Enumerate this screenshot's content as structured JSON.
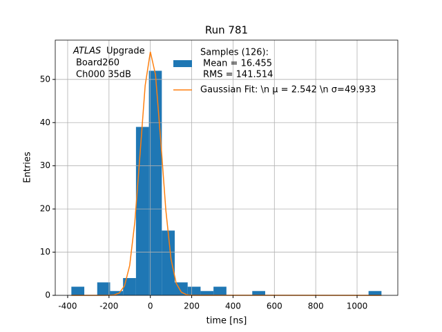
{
  "chart_data": {
    "type": "histogram",
    "title": "Run 781",
    "xlabel": "time [ns]",
    "ylabel": "Entries",
    "annotation": [
      "ATLAS",
      "Upgrade",
      "Board260",
      "Ch000 35dB"
    ],
    "bins": [
      -382,
      -319.5,
      -257,
      -194.5,
      -132,
      -69.5,
      -7,
      55.5,
      118,
      180.5,
      243,
      305.5,
      368,
      430.5,
      493,
      555.5,
      618,
      680.5,
      743,
      805.5,
      868,
      930.5,
      993,
      1055.5,
      1118
    ],
    "series": [
      {
        "type": "histogram",
        "name": [
          "Samples (126):",
          "Mean = 16.455",
          "RMS = 141.514"
        ],
        "color": "#1f77b4",
        "values": [
          2,
          0,
          3,
          1,
          4,
          39,
          52,
          15,
          3,
          2,
          1,
          2,
          0,
          0,
          1,
          0,
          0,
          0,
          0,
          0,
          0,
          0,
          0,
          1
        ]
      },
      {
        "type": "line",
        "name": "Gaussian Fit: \\n μ = 2.542 \\n σ=49.933",
        "color": "#ff7f0e",
        "x": [
          -382,
          -200,
          -175,
          -150,
          -125,
          -100,
          -75,
          -50,
          -25,
          0,
          25,
          50,
          75,
          100,
          125,
          150,
          175,
          200,
          1118
        ],
        "values": [
          0,
          0.02,
          0.1,
          0.54,
          2.19,
          6.9,
          17.0,
          32.6,
          48.6,
          56.4,
          51.1,
          36.0,
          19.7,
          8.4,
          2.8,
          0.73,
          0.15,
          0.02,
          0
        ]
      }
    ],
    "xlim": [
      -460,
      1197
    ],
    "ylim": [
      0,
      59.1
    ],
    "xticks": [
      -400,
      -200,
      0,
      200,
      400,
      600,
      800,
      1000
    ],
    "yticks": [
      0,
      10,
      20,
      30,
      40,
      50
    ],
    "grid": true,
    "legend": "upper right"
  }
}
